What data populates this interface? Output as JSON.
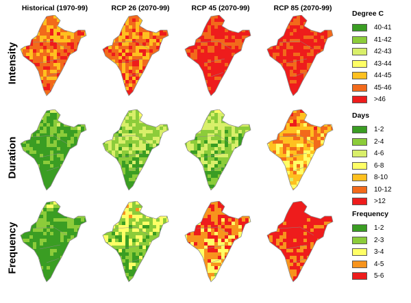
{
  "columns": [
    "Historical (1970-99)",
    "RCP 26 (2070-99)",
    "RCP 45 (2070-99)",
    "RCP 85 (2070-99)"
  ],
  "rows": [
    {
      "label": "Intensity",
      "legend": {
        "title": "Degree C",
        "items": [
          {
            "label": "40-41",
            "color": "#3a9d23"
          },
          {
            "label": "41-42",
            "color": "#8ccc3a"
          },
          {
            "label": "42-43",
            "color": "#d9ef6a"
          },
          {
            "label": "43-44",
            "color": "#ffff66"
          },
          {
            "label": "44-45",
            "color": "#ffc020"
          },
          {
            "label": "45-46",
            "color": "#f26a1b"
          },
          {
            "label": ">46",
            "color": "#ee1c1c"
          }
        ]
      },
      "levels": [
        5,
        5,
        6,
        6
      ]
    },
    {
      "label": "Duration",
      "legend": {
        "title": "Days",
        "items": [
          {
            "label": "1-2",
            "color": "#3a9d23"
          },
          {
            "label": "2-4",
            "color": "#8ccc3a"
          },
          {
            "label": "4-6",
            "color": "#d9ef6a"
          },
          {
            "label": "6-8",
            "color": "#ffff66"
          },
          {
            "label": "8-10",
            "color": "#ffc020"
          },
          {
            "label": "10-12",
            "color": "#f26a1b"
          },
          {
            "label": ">12",
            "color": "#ee1c1c"
          }
        ]
      },
      "levels": [
        0,
        1,
        1,
        4
      ]
    },
    {
      "label": "Frequency",
      "legend": {
        "title": "Frequency",
        "items": [
          {
            "label": "1-2",
            "color": "#3a9d23"
          },
          {
            "label": "2-3",
            "color": "#8ccc3a"
          },
          {
            "label": "3-4",
            "color": "#ffff66"
          },
          {
            "label": "4-5",
            "color": "#f7941d"
          },
          {
            "label": "5-6",
            "color": "#ee1c1c"
          }
        ]
      },
      "levels": [
        0,
        1,
        3,
        4
      ]
    }
  ],
  "colors": {
    "outline": "#8a8a8a"
  }
}
